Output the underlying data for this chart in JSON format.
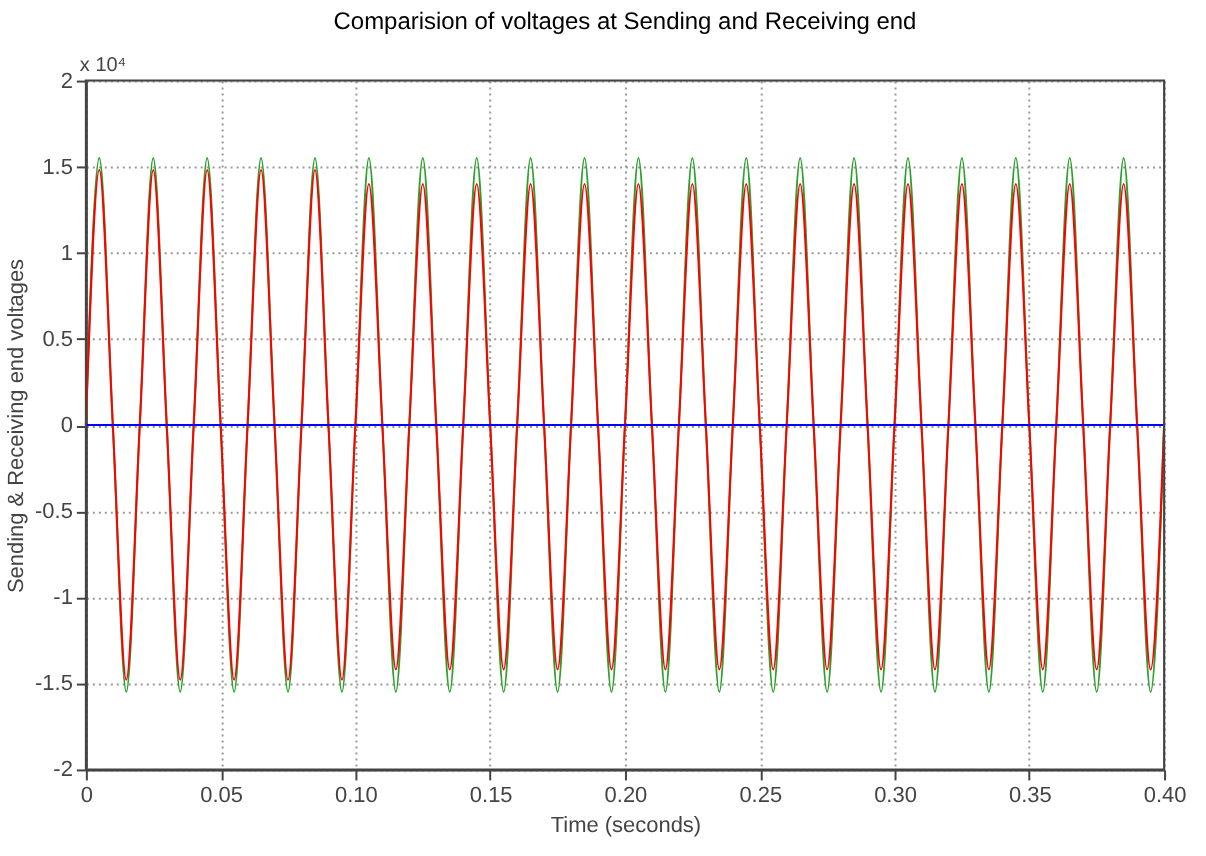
{
  "chart_data": {
    "type": "line",
    "title": "Comparision of voltages at Sending and Receiving end",
    "xlabel": "Time (seconds)",
    "ylabel": "Sending & Receiving end voltages",
    "annotations": [
      "x 10⁴"
    ],
    "xlim": [
      0,
      0.4
    ],
    "ylim": [
      -2,
      2
    ],
    "xticks": [
      0,
      0.05,
      {
        "value": 0.1,
        "label": "0.10"
      },
      0.15,
      {
        "value": 0.2,
        "label": "0.20"
      },
      0.25,
      {
        "value": 0.3,
        "label": "0.30"
      },
      0.35,
      {
        "value": 0.4,
        "label": "0.40"
      }
    ],
    "yticks": [
      -2,
      -1.5,
      -1,
      -0.5,
      0,
      0.5,
      1,
      1.5,
      2
    ],
    "grid": true,
    "line_style": "solid",
    "marker": "none",
    "series": [
      {
        "color": "#2ca02c",
        "x": [
          0,
          0.005,
          0.01,
          0.015,
          0.02,
          0.025,
          0.03,
          0.035,
          0.04,
          0.045,
          0.05,
          0.055,
          0.06,
          0.065,
          0.07,
          0.075,
          0.08,
          0.085,
          0.09,
          0.095,
          0.1,
          0.105,
          0.11,
          0.115,
          0.12,
          0.125,
          0.13,
          0.135,
          0.14,
          0.145,
          0.15,
          0.155,
          0.16,
          0.165,
          0.17,
          0.175,
          0.18,
          0.185,
          0.19,
          0.195,
          0.2,
          0.205,
          0.21,
          0.215,
          0.22,
          0.225,
          0.23,
          0.235,
          0.24,
          0.245,
          0.25,
          0.255,
          0.26,
          0.265,
          0.27,
          0.275,
          0.28,
          0.285,
          0.29,
          0.295,
          0.3,
          0.305,
          0.31,
          0.315,
          0.32,
          0.325,
          0.33,
          0.335,
          0.34,
          0.345,
          0.35,
          0.355,
          0.36,
          0.365,
          0.37,
          0.375,
          0.38,
          0.385,
          0.39,
          0.395,
          0.4
        ],
        "values": [
          0,
          1.55,
          0,
          -1.55,
          0,
          1.55,
          0,
          -1.55,
          0,
          1.55,
          0,
          -1.55,
          0,
          1.55,
          0,
          -1.55,
          0,
          1.55,
          0,
          -1.55,
          0,
          1.55,
          0,
          -1.55,
          0,
          1.55,
          0,
          -1.55,
          0,
          1.55,
          0,
          -1.55,
          0,
          1.55,
          0,
          -1.55,
          0,
          1.55,
          0,
          -1.55,
          0,
          1.55,
          0,
          -1.55,
          0,
          1.55,
          0,
          -1.55,
          0,
          1.55,
          0,
          -1.55,
          0,
          1.55,
          0,
          -1.55,
          0,
          1.55,
          0,
          -1.55,
          0,
          1.55,
          0,
          -1.55,
          0,
          1.55,
          0,
          -1.55,
          0,
          1.55,
          0,
          -1.55,
          0,
          1.55,
          0,
          -1.55,
          0,
          1.55,
          0,
          -1.55,
          0
        ]
      },
      {
        "color": "#ff0000",
        "x": [
          0,
          0.005,
          0.01,
          0.015,
          0.02,
          0.025,
          0.03,
          0.035,
          0.04,
          0.045,
          0.05,
          0.055,
          0.06,
          0.065,
          0.07,
          0.075,
          0.08,
          0.085,
          0.09,
          0.095,
          0.1,
          0.105,
          0.11,
          0.115,
          0.12,
          0.125,
          0.13,
          0.135,
          0.14,
          0.145,
          0.15,
          0.155,
          0.16,
          0.165,
          0.17,
          0.175,
          0.18,
          0.185,
          0.19,
          0.195,
          0.2,
          0.205,
          0.21,
          0.215,
          0.22,
          0.225,
          0.23,
          0.235,
          0.24,
          0.245,
          0.25,
          0.255,
          0.26,
          0.265,
          0.27,
          0.275,
          0.28,
          0.285,
          0.29,
          0.295,
          0.3,
          0.305,
          0.31,
          0.315,
          0.32,
          0.325,
          0.33,
          0.335,
          0.34,
          0.345,
          0.35,
          0.355,
          0.36,
          0.365,
          0.37,
          0.375,
          0.38,
          0.385,
          0.39,
          0.395,
          0.4
        ],
        "values": [
          0,
          1.48,
          0,
          -1.48,
          0,
          1.48,
          0,
          -1.48,
          0,
          1.48,
          0,
          -1.48,
          0,
          1.48,
          0,
          -1.48,
          0,
          1.48,
          0,
          -1.48,
          0,
          1.4,
          0,
          -1.42,
          0,
          1.4,
          0,
          -1.42,
          0,
          1.4,
          0,
          -1.42,
          0,
          1.4,
          0,
          -1.42,
          0,
          1.4,
          0,
          -1.42,
          0,
          1.4,
          0,
          -1.42,
          0,
          1.4,
          0,
          -1.42,
          0,
          1.4,
          0,
          -1.42,
          0,
          1.4,
          0,
          -1.42,
          0,
          1.4,
          0,
          -1.42,
          0,
          1.4,
          0,
          -1.42,
          0,
          1.4,
          0,
          -1.42,
          0,
          1.4,
          0,
          -1.42,
          0,
          1.4,
          0,
          -1.42,
          0,
          1.4,
          0,
          -1.42,
          0
        ]
      },
      {
        "color": "#0000ff",
        "x": [
          0,
          0.4
        ],
        "values": [
          0,
          0
        ]
      }
    ]
  }
}
